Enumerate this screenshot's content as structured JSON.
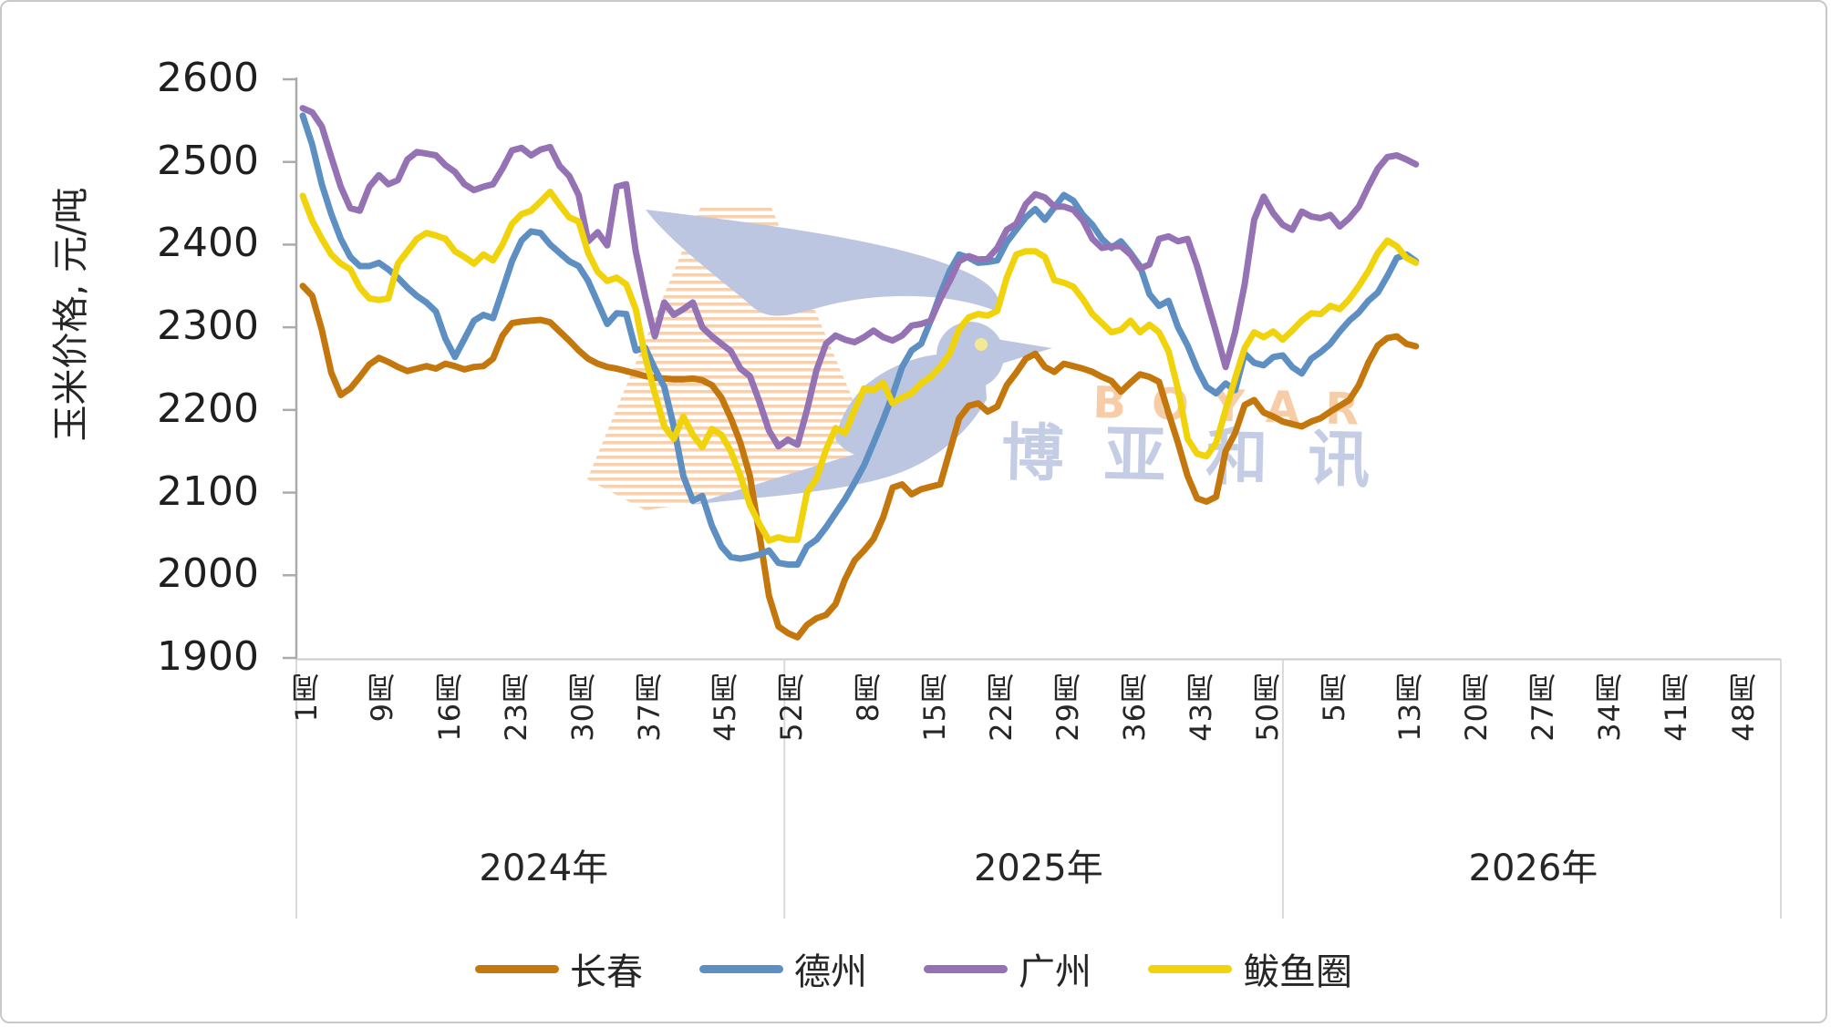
{
  "chart_data": {
    "type": "line",
    "title": "",
    "ylabel": "玉米价格, 元/吨",
    "ylim": [
      1900,
      2600
    ],
    "y_tick_step": 100,
    "y_ticks": [
      2600,
      2500,
      2400,
      2300,
      2200,
      2100,
      2000,
      1900
    ],
    "grid": "off",
    "legend_position": "bottom",
    "x_axis": {
      "unit_suffix": "周",
      "groups": [
        {
          "year_label": "2024年",
          "weeks_in_year": 52,
          "tick_weeks": [
            1,
            9,
            16,
            23,
            30,
            37,
            45,
            52
          ]
        },
        {
          "year_label": "2025年",
          "weeks_in_year": 52,
          "tick_weeks": [
            8,
            15,
            22,
            29,
            36,
            43,
            50
          ]
        },
        {
          "year_label": "2026年",
          "weeks_in_year": 52,
          "tick_weeks": [
            5,
            13,
            20,
            27,
            34,
            41,
            48
          ]
        }
      ]
    },
    "series": [
      {
        "name": "长春",
        "color": "#C4770D",
        "values_2024": [
          2350,
          2338,
          2297,
          2245,
          2218,
          2226,
          2240,
          2255,
          2263,
          2258,
          2252,
          2247,
          2250,
          2253,
          2250,
          2256,
          2253,
          2249,
          2252,
          2253,
          2262,
          2290,
          2305,
          2307,
          2308,
          2309,
          2306,
          2295,
          2284,
          2272,
          2262,
          2256,
          2252,
          2250,
          2247,
          2244,
          2241,
          2239,
          2238,
          2237,
          2237,
          2238,
          2236,
          2230,
          2215,
          2190,
          2160,
          2120,
          2050,
          1975,
          1938,
          1930
        ],
        "values_2025": [
          1925,
          1940,
          1948,
          1952,
          1965,
          1995,
          2018,
          2030,
          2044,
          2070,
          2106,
          2110,
          2098,
          2104,
          2107,
          2110,
          2150,
          2190,
          2205,
          2208,
          2198,
          2204,
          2230,
          2245,
          2262,
          2268,
          2252,
          2246,
          2256,
          2253,
          2250,
          2246,
          2240,
          2235,
          2222,
          2233,
          2243,
          2240,
          2234,
          2196,
          2160,
          2120,
          2093,
          2089,
          2095,
          2150,
          2172,
          2206,
          2212,
          2197,
          2192,
          2186
        ],
        "values_2026": [
          2183,
          2180,
          2186,
          2190,
          2198,
          2205,
          2212,
          2230,
          2257,
          2278,
          2287,
          2289,
          2280,
          2277
        ]
      },
      {
        "name": "德州",
        "color": "#5E8FC3",
        "values_2024": [
          2556,
          2521,
          2473,
          2437,
          2407,
          2385,
          2374,
          2374,
          2378,
          2370,
          2360,
          2348,
          2338,
          2330,
          2319,
          2286,
          2264,
          2286,
          2308,
          2315,
          2311,
          2345,
          2380,
          2405,
          2416,
          2414,
          2400,
          2390,
          2380,
          2374,
          2356,
          2330,
          2304,
          2317,
          2316,
          2272,
          2275,
          2250,
          2228,
          2180,
          2120,
          2090,
          2096,
          2060,
          2035,
          2022,
          2020,
          2022,
          2025,
          2030,
          2015,
          2013
        ],
        "values_2025": [
          2013,
          2035,
          2043,
          2058,
          2075,
          2092,
          2112,
          2133,
          2160,
          2188,
          2218,
          2252,
          2272,
          2280,
          2308,
          2340,
          2368,
          2388,
          2384,
          2378,
          2379,
          2381,
          2403,
          2418,
          2433,
          2443,
          2430,
          2445,
          2460,
          2453,
          2436,
          2424,
          2407,
          2396,
          2404,
          2390,
          2374,
          2340,
          2326,
          2332,
          2300,
          2278,
          2250,
          2228,
          2220,
          2232,
          2224,
          2268,
          2257,
          2254,
          2264,
          2266
        ],
        "values_2026": [
          2252,
          2244,
          2262,
          2270,
          2280,
          2295,
          2308,
          2318,
          2332,
          2342,
          2362,
          2384,
          2388,
          2380
        ]
      },
      {
        "name": "广州",
        "color": "#9472B4",
        "values_2024": [
          2565,
          2560,
          2543,
          2506,
          2470,
          2444,
          2441,
          2470,
          2484,
          2473,
          2478,
          2503,
          2512,
          2510,
          2508,
          2496,
          2488,
          2473,
          2466,
          2470,
          2473,
          2492,
          2514,
          2517,
          2508,
          2515,
          2518,
          2495,
          2483,
          2460,
          2404,
          2415,
          2399,
          2470,
          2473,
          2392,
          2337,
          2289,
          2330,
          2315,
          2322,
          2330,
          2300,
          2289,
          2280,
          2271,
          2250,
          2241,
          2210,
          2175,
          2156,
          2164
        ],
        "values_2025": [
          2158,
          2200,
          2248,
          2280,
          2290,
          2285,
          2282,
          2288,
          2296,
          2288,
          2284,
          2290,
          2302,
          2304,
          2308,
          2334,
          2356,
          2380,
          2386,
          2382,
          2383,
          2396,
          2418,
          2425,
          2449,
          2461,
          2457,
          2446,
          2446,
          2442,
          2429,
          2407,
          2396,
          2398,
          2398,
          2388,
          2371,
          2376,
          2407,
          2410,
          2404,
          2407,
          2374,
          2334,
          2294,
          2252,
          2294,
          2352,
          2430,
          2458,
          2438,
          2424
        ],
        "values_2026": [
          2418,
          2440,
          2434,
          2432,
          2436,
          2422,
          2432,
          2446,
          2470,
          2492,
          2506,
          2508,
          2503,
          2497
        ]
      },
      {
        "name": "鲅鱼圈",
        "color": "#F0D30A",
        "values_2024": [
          2459,
          2429,
          2407,
          2388,
          2377,
          2370,
          2348,
          2335,
          2333,
          2335,
          2377,
          2392,
          2407,
          2414,
          2411,
          2407,
          2392,
          2385,
          2377,
          2388,
          2381,
          2400,
          2425,
          2437,
          2441,
          2452,
          2464,
          2448,
          2433,
          2428,
          2390,
          2367,
          2356,
          2360,
          2352,
          2322,
          2264,
          2220,
          2180,
          2165,
          2192,
          2170,
          2155,
          2177,
          2170,
          2150,
          2120,
          2085,
          2062,
          2042,
          2046,
          2043
        ],
        "values_2025": [
          2043,
          2100,
          2117,
          2152,
          2178,
          2172,
          2200,
          2226,
          2224,
          2233,
          2208,
          2215,
          2220,
          2232,
          2240,
          2252,
          2268,
          2298,
          2312,
          2316,
          2314,
          2320,
          2360,
          2388,
          2392,
          2392,
          2385,
          2357,
          2354,
          2349,
          2334,
          2316,
          2305,
          2294,
          2297,
          2308,
          2294,
          2303,
          2294,
          2271,
          2225,
          2165,
          2147,
          2144,
          2160,
          2200,
          2238,
          2275,
          2294,
          2288,
          2295,
          2285
        ],
        "values_2026": [
          2296,
          2308,
          2317,
          2316,
          2326,
          2322,
          2334,
          2350,
          2368,
          2390,
          2405,
          2398,
          2384,
          2378
        ]
      }
    ]
  },
  "watermark": {
    "text_cn": "博亚和讯",
    "text_en": "BOYAR",
    "cn_color": "#C2CBE4",
    "en_color": "#F6CBA2",
    "bird_color": "#B9C3DF",
    "bird_eye_color": "#F2E98E",
    "stripe_color": "#F5CFAC"
  },
  "axis_style": {
    "axis_color": "#ABABAB",
    "baseline_color": "#C9C9C9",
    "separator_color": "#D9D9D9"
  }
}
